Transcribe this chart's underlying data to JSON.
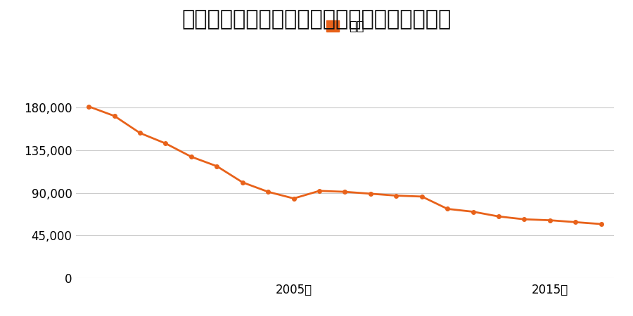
{
  "title": "山梨県甲府市上石田１丁目２番６号の地価推移",
  "legend_label": "価格",
  "line_color": "#E8621A",
  "marker_color": "#E8621A",
  "background_color": "#ffffff",
  "years": [
    1997,
    1998,
    1999,
    2000,
    2001,
    2002,
    2003,
    2004,
    2005,
    2006,
    2007,
    2008,
    2009,
    2010,
    2011,
    2012,
    2013,
    2014,
    2015,
    2016,
    2017
  ],
  "values": [
    181000,
    171000,
    153000,
    142000,
    128000,
    118000,
    101000,
    91000,
    84000,
    92000,
    91000,
    89000,
    87000,
    86000,
    73000,
    70000,
    65000,
    62000,
    61000,
    59000,
    57000
  ],
  "yticks": [
    0,
    45000,
    90000,
    135000,
    180000
  ],
  "xtick_years": [
    2005,
    2015
  ],
  "ylim": [
    0,
    200000
  ],
  "xlabel_suffix": "年",
  "grid_color": "#cccccc",
  "title_fontsize": 22,
  "legend_fontsize": 13,
  "tick_fontsize": 12,
  "marker_size": 4,
  "line_width": 2.0
}
